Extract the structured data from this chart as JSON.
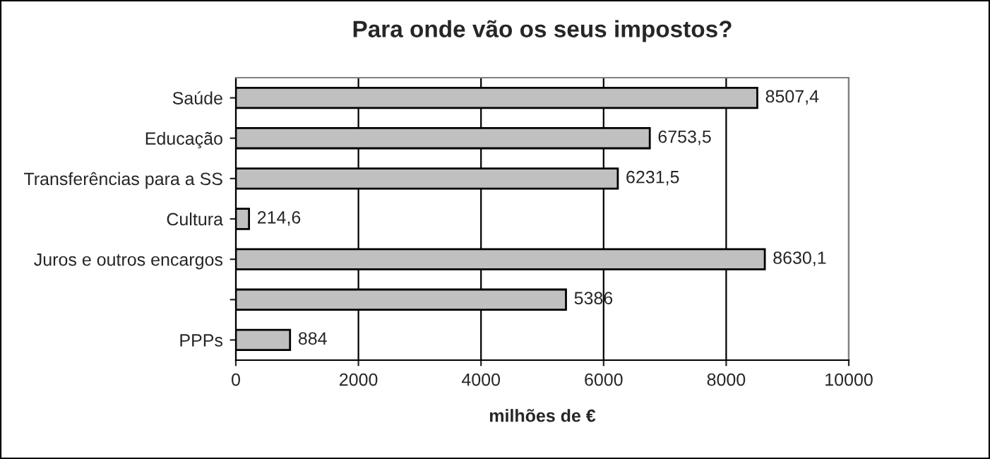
{
  "chart_data": {
    "type": "bar",
    "orientation": "horizontal",
    "title": "Para onde vão os seus impostos?",
    "xlabel": "milhões de €",
    "categories": [
      "Saúde",
      "Educação",
      "Transferências para a SS",
      "Cultura",
      "Juros e outros encargos",
      null,
      "PPPs"
    ],
    "values": [
      8507.4,
      6753.5,
      6231.5,
      214.6,
      8630.1,
      5386,
      884
    ],
    "value_labels": [
      "8507,4",
      "6753,5",
      "6231,5",
      "214,6",
      "8630,1",
      "5386",
      "884"
    ],
    "color": "#c0c0c0",
    "xlim": [
      0,
      10000
    ],
    "xticks": [
      0,
      2000,
      4000,
      6000,
      8000,
      10000
    ],
    "grid": "x",
    "legend": false
  }
}
